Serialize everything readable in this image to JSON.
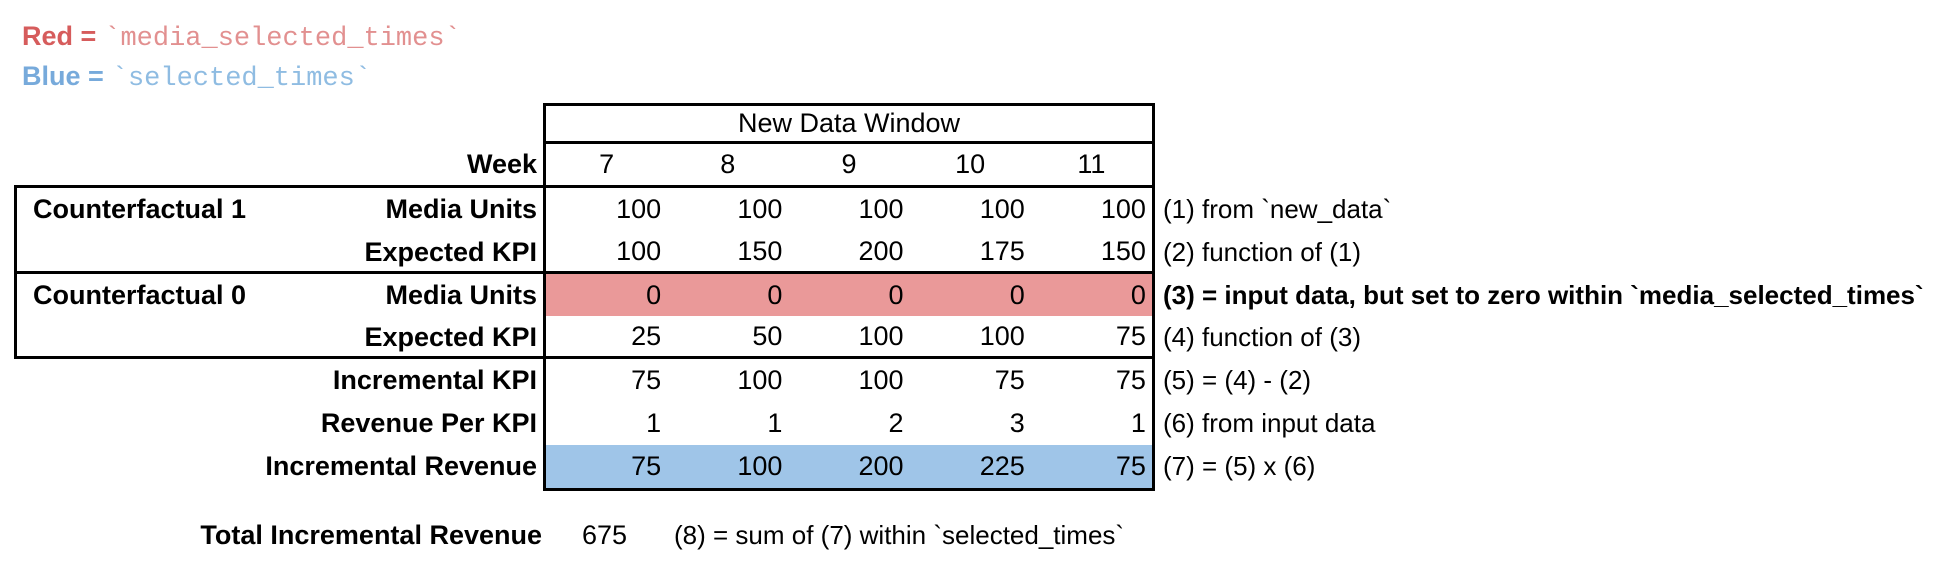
{
  "legend": {
    "red_label": "Red =",
    "red_code": "`media_selected_times`",
    "blue_label": "Blue =",
    "blue_code": "`selected_times`"
  },
  "colors": {
    "red_fill": "#EA9999",
    "blue_fill": "#9FC5E8",
    "red_label": "#D65C5C",
    "red_code": "#E29090",
    "blue_label": "#77AADB",
    "blue_code": "#8FBCE2"
  },
  "table": {
    "header": "New Data Window",
    "week_label": "Week",
    "weeks": [
      "7",
      "8",
      "9",
      "10",
      "11"
    ],
    "rows": [
      {
        "group": "Counterfactual 1",
        "label": "Media Units",
        "values": [
          "100",
          "100",
          "100",
          "100",
          "100"
        ],
        "note": "(1) from `new_data`",
        "highlight": "none"
      },
      {
        "group": "",
        "label": "Expected KPI",
        "values": [
          "100",
          "150",
          "200",
          "175",
          "150"
        ],
        "note": "(2) function of (1)",
        "highlight": "none"
      },
      {
        "group": "Counterfactual 0",
        "label": "Media Units",
        "values": [
          "0",
          "0",
          "0",
          "0",
          "0"
        ],
        "note": "(3) = input data, but set to zero within `media_selected_times`",
        "highlight": "red"
      },
      {
        "group": "",
        "label": "Expected KPI",
        "values": [
          "25",
          "50",
          "100",
          "100",
          "75"
        ],
        "note": "(4) function of (3)",
        "highlight": "none"
      },
      {
        "group": "",
        "label": "Incremental KPI",
        "values": [
          "75",
          "100",
          "100",
          "75",
          "75"
        ],
        "note": "(5) = (4) - (2)",
        "highlight": "none"
      },
      {
        "group": "",
        "label": "Revenue Per KPI",
        "values": [
          "1",
          "1",
          "2",
          "3",
          "1"
        ],
        "note": "(6) from input data",
        "highlight": "none"
      },
      {
        "group": "",
        "label": "Incremental Revenue",
        "values": [
          "75",
          "100",
          "200",
          "225",
          "75"
        ],
        "note": "(7) = (5) x (6)",
        "highlight": "blue"
      }
    ]
  },
  "total": {
    "label": "Total Incremental Revenue",
    "value": "675",
    "note": "(8) = sum of (7) within `selected_times`"
  }
}
